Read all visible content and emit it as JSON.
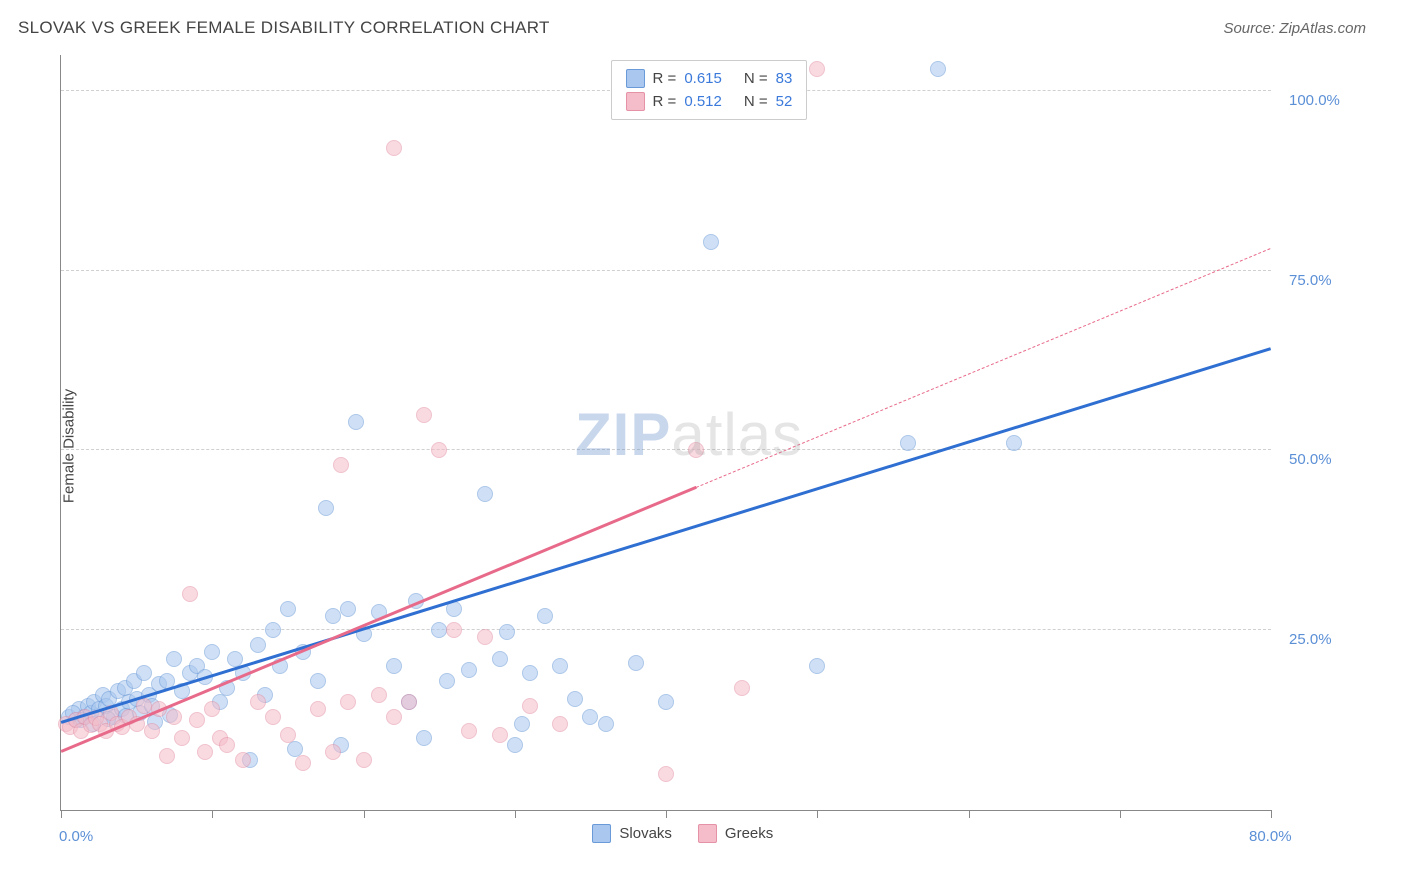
{
  "title": "SLOVAK VS GREEK FEMALE DISABILITY CORRELATION CHART",
  "source": "Source: ZipAtlas.com",
  "ylabel": "Female Disability",
  "watermark": {
    "z": "Z",
    "ip": "IP",
    "atlas": "atlas"
  },
  "chart": {
    "type": "scatter",
    "background_color": "#ffffff",
    "grid_color": "#d0d0d0",
    "axis_color": "#888888",
    "xlim": [
      0,
      80
    ],
    "ylim": [
      0,
      105
    ],
    "xticks": [
      0,
      10,
      20,
      30,
      40,
      50,
      60,
      70,
      80
    ],
    "xtick_labels_shown": {
      "0": "0.0%",
      "80": "80.0%"
    },
    "yticks": [
      25,
      50,
      75,
      100
    ],
    "ytick_labels": {
      "25": "25.0%",
      "50": "50.0%",
      "75": "75.0%",
      "100": "100.0%"
    },
    "ytick_label_color": "#5b8fd6",
    "xtick_label_color": "#5b8fd6",
    "point_radius": 7,
    "point_opacity": 0.55,
    "series": [
      {
        "name": "Slovaks",
        "color_fill": "#a9c7ef",
        "color_stroke": "#6a9ad8",
        "R": "0.615",
        "N": "83",
        "trend": {
          "x1": 0,
          "y1": 12,
          "x2": 80,
          "y2": 64,
          "color": "#2f6fd2",
          "dashed_from": null
        },
        "points": [
          [
            0.5,
            13
          ],
          [
            1,
            12.5
          ],
          [
            1.2,
            14
          ],
          [
            1.5,
            13
          ],
          [
            1.8,
            14.5
          ],
          [
            2,
            13.5
          ],
          [
            2.2,
            15
          ],
          [
            2.5,
            14
          ],
          [
            2.8,
            16
          ],
          [
            3,
            14.5
          ],
          [
            3.2,
            15.5
          ],
          [
            3.5,
            13
          ],
          [
            3.8,
            16.5
          ],
          [
            4,
            14
          ],
          [
            4.2,
            17
          ],
          [
            4.5,
            15
          ],
          [
            4.8,
            18
          ],
          [
            5,
            15.5
          ],
          [
            5.2,
            13.5
          ],
          [
            5.5,
            19
          ],
          [
            5.8,
            16
          ],
          [
            6,
            14.5
          ],
          [
            6.5,
            17.5
          ],
          [
            7,
            18
          ],
          [
            7.5,
            21
          ],
          [
            8,
            16.5
          ],
          [
            8.5,
            19
          ],
          [
            9,
            20
          ],
          [
            9.5,
            18.5
          ],
          [
            10,
            22
          ],
          [
            10.5,
            15
          ],
          [
            11,
            17
          ],
          [
            11.5,
            21
          ],
          [
            12,
            19
          ],
          [
            12.5,
            7
          ],
          [
            13,
            23
          ],
          [
            13.5,
            16
          ],
          [
            14,
            25
          ],
          [
            14.5,
            20
          ],
          [
            15,
            28
          ],
          [
            15.5,
            8.5
          ],
          [
            16,
            22
          ],
          [
            17,
            18
          ],
          [
            17.5,
            42
          ],
          [
            18,
            27
          ],
          [
            18.5,
            9
          ],
          [
            19,
            28
          ],
          [
            19.5,
            54
          ],
          [
            20,
            24.5
          ],
          [
            21,
            27.5
          ],
          [
            22,
            20
          ],
          [
            23,
            15
          ],
          [
            23.5,
            29
          ],
          [
            24,
            10
          ],
          [
            25,
            25
          ],
          [
            25.5,
            18
          ],
          [
            26,
            28
          ],
          [
            27,
            19.5
          ],
          [
            28,
            44
          ],
          [
            29,
            21
          ],
          [
            29.5,
            24.8
          ],
          [
            30,
            9
          ],
          [
            30.5,
            12
          ],
          [
            31,
            19
          ],
          [
            32,
            27
          ],
          [
            33,
            20
          ],
          [
            34,
            15.5
          ],
          [
            35,
            13
          ],
          [
            36,
            12
          ],
          [
            38,
            20.5
          ],
          [
            40,
            15
          ],
          [
            43,
            79
          ],
          [
            50,
            20
          ],
          [
            56,
            51
          ],
          [
            58,
            103
          ],
          [
            63,
            51
          ],
          [
            1.3,
            12.5
          ],
          [
            2.1,
            12
          ],
          [
            0.8,
            13.5
          ],
          [
            3.1,
            12.7
          ],
          [
            6.2,
            12.3
          ],
          [
            7.2,
            13.2
          ],
          [
            4.3,
            13.1
          ]
        ]
      },
      {
        "name": "Greeks",
        "color_fill": "#f5bcc9",
        "color_stroke": "#e591a6",
        "R": "0.512",
        "N": "52",
        "trend": {
          "x1": 0,
          "y1": 8,
          "x2": 80,
          "y2": 78,
          "color": "#e86a8a",
          "dashed_from": 42
        },
        "points": [
          [
            0.3,
            12
          ],
          [
            0.6,
            11.5
          ],
          [
            1,
            12.5
          ],
          [
            1.3,
            11
          ],
          [
            1.6,
            13
          ],
          [
            2,
            11.8
          ],
          [
            2.3,
            12.8
          ],
          [
            2.6,
            12
          ],
          [
            3,
            11
          ],
          [
            3.3,
            13.5
          ],
          [
            3.7,
            12
          ],
          [
            4,
            11.5
          ],
          [
            4.5,
            13
          ],
          [
            5,
            12
          ],
          [
            5.5,
            14.5
          ],
          [
            6,
            11
          ],
          [
            6.5,
            14
          ],
          [
            7,
            7.5
          ],
          [
            7.5,
            13
          ],
          [
            8,
            10
          ],
          [
            8.5,
            30
          ],
          [
            9,
            12.5
          ],
          [
            9.5,
            8
          ],
          [
            10,
            14
          ],
          [
            10.5,
            10
          ],
          [
            11,
            9
          ],
          [
            12,
            7
          ],
          [
            13,
            15
          ],
          [
            14,
            13
          ],
          [
            15,
            10.5
          ],
          [
            16,
            6.5
          ],
          [
            17,
            14
          ],
          [
            18,
            8
          ],
          [
            18.5,
            48
          ],
          [
            19,
            15
          ],
          [
            20,
            7
          ],
          [
            21,
            16
          ],
          [
            22,
            13
          ],
          [
            23,
            15
          ],
          [
            24,
            55
          ],
          [
            25,
            50
          ],
          [
            26,
            25
          ],
          [
            27,
            11
          ],
          [
            28,
            24
          ],
          [
            29,
            10.5
          ],
          [
            31,
            14.5
          ],
          [
            33,
            12
          ],
          [
            22,
            92
          ],
          [
            40,
            5
          ],
          [
            45,
            17
          ],
          [
            42,
            50
          ],
          [
            50,
            103
          ]
        ]
      }
    ]
  },
  "legend_top": {
    "rows": [
      {
        "swatch_fill": "#a9c7ef",
        "swatch_stroke": "#6a9ad8",
        "r_label": "R =",
        "r_val": "0.615",
        "n_label": "N =",
        "n_val": "83"
      },
      {
        "swatch_fill": "#f5bcc9",
        "swatch_stroke": "#e591a6",
        "r_label": "R =",
        "r_val": "0.512",
        "n_label": "N =",
        "n_val": "52"
      }
    ]
  },
  "legend_bottom": {
    "items": [
      {
        "swatch_fill": "#a9c7ef",
        "swatch_stroke": "#6a9ad8",
        "label": "Slovaks"
      },
      {
        "swatch_fill": "#f5bcc9",
        "swatch_stroke": "#e591a6",
        "label": "Greeks"
      }
    ]
  }
}
